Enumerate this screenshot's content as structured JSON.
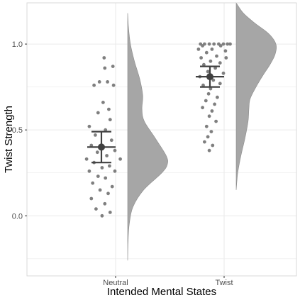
{
  "chart_data": {
    "type": "scatter",
    "subtype": "raincloud",
    "title": "",
    "xlabel": "Intended Mental States",
    "ylabel": "Twist Strength",
    "categories": [
      "Neutral",
      "Twist"
    ],
    "ylim": [
      -0.35,
      1.24
    ],
    "yticks": [
      0.0,
      0.5,
      1.0
    ],
    "ytick_labels": [
      "0.0",
      "0.5",
      "1.0"
    ],
    "grid": true,
    "legend": "none",
    "colors": {
      "points": "#7f7f7f",
      "density": "#a6a6a6",
      "density_outline": "#8c8c8c",
      "summary": "#404040",
      "grid": "#ebebeb",
      "panel_border": "#d9d9d9"
    },
    "series": [
      {
        "category": "Neutral",
        "summary": {
          "mean": 0.4,
          "ci_low": 0.31,
          "ci_high": 0.49
        },
        "density": {
          "y": [
            -0.26,
            -0.15,
            -0.05,
            0.05,
            0.15,
            0.25,
            0.3,
            0.35,
            0.45,
            0.55,
            0.62,
            0.7,
            0.8,
            0.9,
            1.0,
            1.1,
            1.18
          ],
          "density": [
            0.0,
            0.01,
            0.04,
            0.13,
            0.4,
            0.86,
            1.0,
            0.97,
            0.7,
            0.42,
            0.36,
            0.38,
            0.3,
            0.17,
            0.07,
            0.02,
            0.0
          ]
        },
        "points": [
          {
            "x": 0.08,
            "y": 0.92
          },
          {
            "x": 0.34,
            "y": 0.87
          },
          {
            "x": 0.1,
            "y": 0.86
          },
          {
            "x": -0.06,
            "y": 0.78
          },
          {
            "x": 0.18,
            "y": 0.78
          },
          {
            "x": 0.36,
            "y": 0.76
          },
          {
            "x": -0.22,
            "y": 0.76
          },
          {
            "x": 0.05,
            "y": 0.66
          },
          {
            "x": 0.22,
            "y": 0.62
          },
          {
            "x": -0.1,
            "y": 0.6
          },
          {
            "x": 0.26,
            "y": 0.56
          },
          {
            "x": -0.36,
            "y": 0.52
          },
          {
            "x": 0.12,
            "y": 0.5
          },
          {
            "x": -0.18,
            "y": 0.47
          },
          {
            "x": 0.3,
            "y": 0.44
          },
          {
            "x": -0.3,
            "y": 0.41
          },
          {
            "x": 0.4,
            "y": 0.38
          },
          {
            "x": -0.12,
            "y": 0.37
          },
          {
            "x": 0.16,
            "y": 0.35
          },
          {
            "x": -0.44,
            "y": 0.33
          },
          {
            "x": 0.56,
            "y": 0.33
          },
          {
            "x": -0.22,
            "y": 0.31
          },
          {
            "x": 0.24,
            "y": 0.29
          },
          {
            "x": 0.02,
            "y": 0.28
          },
          {
            "x": -0.36,
            "y": 0.26
          },
          {
            "x": 0.4,
            "y": 0.26
          },
          {
            "x": -0.1,
            "y": 0.23
          },
          {
            "x": 0.12,
            "y": 0.22
          },
          {
            "x": -0.26,
            "y": 0.19
          },
          {
            "x": 0.32,
            "y": 0.17
          },
          {
            "x": -0.04,
            "y": 0.15
          },
          {
            "x": 0.2,
            "y": 0.13
          },
          {
            "x": -0.3,
            "y": 0.1
          },
          {
            "x": 0.1,
            "y": 0.07
          },
          {
            "x": -0.16,
            "y": 0.04
          },
          {
            "x": 0.26,
            "y": 0.02
          },
          {
            "x": 0.02,
            "y": 0.0
          }
        ]
      },
      {
        "category": "Twist",
        "summary": {
          "mean": 0.81,
          "ci_low": 0.75,
          "ci_high": 0.87
        },
        "density": {
          "y": [
            0.15,
            0.25,
            0.35,
            0.45,
            0.55,
            0.62,
            0.68,
            0.75,
            0.82,
            0.88,
            0.94,
            1.0,
            1.06,
            1.12,
            1.18,
            1.24
          ],
          "density": [
            0.0,
            0.04,
            0.12,
            0.22,
            0.3,
            0.32,
            0.35,
            0.5,
            0.68,
            0.85,
            0.98,
            1.0,
            0.82,
            0.48,
            0.18,
            0.0
          ]
        },
        "points": [
          {
            "x": -0.28,
            "y": 1.0
          },
          {
            "x": -0.16,
            "y": 1.0
          },
          {
            "x": -0.02,
            "y": 1.0
          },
          {
            "x": 0.12,
            "y": 1.0
          },
          {
            "x": 0.26,
            "y": 1.0
          },
          {
            "x": 0.4,
            "y": 1.0
          },
          {
            "x": 0.52,
            "y": 1.0
          },
          {
            "x": 0.6,
            "y": 1.0
          },
          {
            "x": -0.22,
            "y": 0.99
          },
          {
            "x": 0.32,
            "y": 0.99
          },
          {
            "x": -0.34,
            "y": 0.97
          },
          {
            "x": 0.06,
            "y": 0.97
          },
          {
            "x": 0.46,
            "y": 0.96
          },
          {
            "x": -0.1,
            "y": 0.95
          },
          {
            "x": 0.2,
            "y": 0.93
          },
          {
            "x": -0.26,
            "y": 0.92
          },
          {
            "x": 0.48,
            "y": 0.92
          },
          {
            "x": 0.02,
            "y": 0.9
          },
          {
            "x": 0.3,
            "y": 0.89
          },
          {
            "x": -0.18,
            "y": 0.88
          },
          {
            "x": 0.16,
            "y": 0.86
          },
          {
            "x": -0.06,
            "y": 0.84
          },
          {
            "x": 0.4,
            "y": 0.83
          },
          {
            "x": -0.3,
            "y": 0.81
          },
          {
            "x": 0.1,
            "y": 0.79
          },
          {
            "x": 0.3,
            "y": 0.77
          },
          {
            "x": -0.2,
            "y": 0.76
          },
          {
            "x": 0.02,
            "y": 0.74
          },
          {
            "x": -0.04,
            "y": 0.71
          },
          {
            "x": 0.22,
            "y": 0.69
          },
          {
            "x": -0.12,
            "y": 0.67
          },
          {
            "x": 0.14,
            "y": 0.65
          },
          {
            "x": -0.22,
            "y": 0.63
          },
          {
            "x": 0.06,
            "y": 0.61
          },
          {
            "x": -0.02,
            "y": 0.58
          },
          {
            "x": 0.18,
            "y": 0.55
          },
          {
            "x": -0.1,
            "y": 0.52
          },
          {
            "x": 0.04,
            "y": 0.49
          },
          {
            "x": -0.06,
            "y": 0.46
          },
          {
            "x": -0.16,
            "y": 0.43
          },
          {
            "x": 0.08,
            "y": 0.41
          },
          {
            "x": -0.02,
            "y": 0.38
          }
        ]
      }
    ]
  }
}
